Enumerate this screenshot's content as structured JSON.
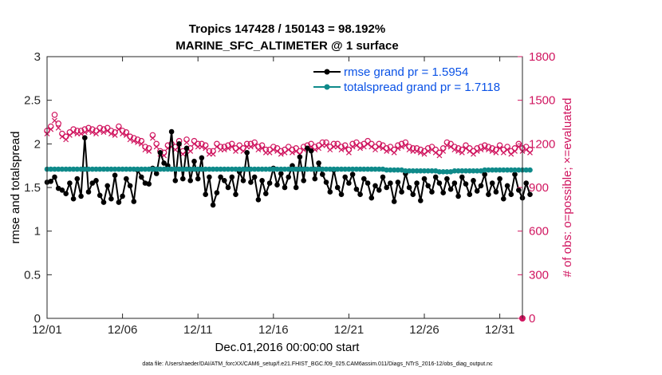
{
  "chart_data": {
    "type": "line",
    "title": "Tropics 147428 / 150143 = 98.192%",
    "subtitle": "MARINE_SFC_ALTIMETER @ 1 surface",
    "xlabel": "Dec.01,2016 00:00:00 start",
    "ylabel": "rmse and totalspread",
    "y2label": "# of obs: o=possible; ×=evaluated",
    "footer": "data file: /Users/raeder/DAI/ATM_forcXX/CAM6_setup/f.e21.FHIST_BGC.f09_025.CAM6assim.011/Diags_NTrS_2016-12/obs_diag_output.nc",
    "xlim": [
      1,
      32.5
    ],
    "ylim": [
      0,
      3
    ],
    "y2lim": [
      0,
      1800
    ],
    "x_ticks": [
      1,
      6,
      11,
      16,
      21,
      26,
      31
    ],
    "x_tick_labels": [
      "12/01",
      "12/06",
      "12/11",
      "12/16",
      "12/21",
      "12/26",
      "12/31"
    ],
    "y_ticks": [
      0,
      0.5,
      1,
      1.5,
      2,
      2.5,
      3
    ],
    "y_tick_labels": [
      "0",
      "0.5",
      "1",
      "1.5",
      "2",
      "2.5",
      "3"
    ],
    "y2_ticks": [
      0,
      300,
      600,
      900,
      1200,
      1500,
      1800
    ],
    "y2_tick_labels": [
      "0",
      "300",
      "600",
      "900",
      "1200",
      "1500",
      "1800"
    ],
    "legend_placement": "top-right",
    "grid": false,
    "x_step_days": 0.25,
    "series": [
      {
        "name": "rmse grand pr = 1.5954",
        "axis": "left",
        "color": "#000000",
        "marker": "filled-circle",
        "values": [
          1.56,
          1.57,
          1.62,
          1.49,
          1.47,
          1.43,
          1.55,
          1.37,
          1.6,
          1.4,
          2.07,
          1.45,
          1.55,
          1.58,
          1.41,
          1.33,
          1.52,
          1.37,
          1.64,
          1.33,
          1.4,
          1.6,
          1.52,
          1.34,
          1.7,
          1.62,
          1.55,
          1.54,
          1.72,
          1.66,
          1.9,
          1.78,
          1.75,
          2.14,
          1.58,
          2.0,
          1.6,
          1.95,
          1.58,
          1.8,
          1.6,
          1.84,
          1.42,
          1.62,
          1.3,
          1.44,
          1.62,
          1.58,
          1.5,
          1.62,
          1.42,
          1.68,
          1.58,
          1.9,
          1.56,
          1.62,
          1.36,
          1.58,
          1.43,
          1.55,
          1.72,
          1.53,
          1.66,
          1.5,
          1.62,
          1.75,
          1.5,
          1.85,
          1.58,
          1.95,
          1.92,
          1.6,
          1.78,
          1.65,
          1.56,
          1.45,
          1.7,
          1.5,
          1.42,
          1.62,
          1.55,
          1.65,
          1.48,
          1.42,
          1.6,
          1.55,
          1.38,
          1.52,
          1.47,
          1.62,
          1.5,
          1.55,
          1.34,
          1.56,
          1.45,
          1.66,
          1.5,
          1.42,
          1.55,
          1.35,
          1.6,
          1.52,
          1.45,
          1.62,
          1.55,
          1.44,
          1.6,
          1.48,
          1.55,
          1.4,
          1.62,
          1.54,
          1.42,
          1.58,
          1.46,
          1.52,
          1.65,
          1.42,
          1.55,
          1.45,
          1.6,
          1.37,
          1.52,
          1.42,
          1.65,
          1.47,
          1.38,
          1.55,
          1.42
        ]
      },
      {
        "name": "totalspread grand pr = 1.7118",
        "axis": "left",
        "color": "#0f8a8a",
        "marker": "filled-circle",
        "values": [
          1.71,
          1.71,
          1.71,
          1.71,
          1.71,
          1.71,
          1.71,
          1.71,
          1.71,
          1.71,
          1.71,
          1.71,
          1.71,
          1.71,
          1.71,
          1.71,
          1.71,
          1.71,
          1.71,
          1.71,
          1.71,
          1.71,
          1.71,
          1.71,
          1.71,
          1.71,
          1.71,
          1.71,
          1.71,
          1.71,
          1.71,
          1.71,
          1.71,
          1.71,
          1.71,
          1.71,
          1.71,
          1.71,
          1.71,
          1.71,
          1.71,
          1.71,
          1.71,
          1.71,
          1.71,
          1.71,
          1.71,
          1.71,
          1.71,
          1.71,
          1.71,
          1.71,
          1.71,
          1.71,
          1.71,
          1.71,
          1.71,
          1.71,
          1.71,
          1.71,
          1.71,
          1.71,
          1.71,
          1.71,
          1.71,
          1.71,
          1.71,
          1.71,
          1.71,
          1.71,
          1.71,
          1.71,
          1.71,
          1.71,
          1.71,
          1.71,
          1.71,
          1.71,
          1.71,
          1.71,
          1.71,
          1.71,
          1.71,
          1.71,
          1.71,
          1.71,
          1.71,
          1.71,
          1.71,
          1.71,
          1.7,
          1.7,
          1.7,
          1.7,
          1.7,
          1.69,
          1.69,
          1.69,
          1.69,
          1.69,
          1.69,
          1.69,
          1.69,
          1.69,
          1.68,
          1.68,
          1.68,
          1.68,
          1.69,
          1.69,
          1.69,
          1.69,
          1.69,
          1.69,
          1.69,
          1.69,
          1.7,
          1.7,
          1.7,
          1.7,
          1.7,
          1.7,
          1.7,
          1.7,
          1.7,
          1.7,
          1.7,
          1.7,
          1.7
        ]
      },
      {
        "name": "possible",
        "axis": "right",
        "color": "#d0155f",
        "marker": "open-circle",
        "values": [
          1290,
          1320,
          1400,
          1340,
          1270,
          1250,
          1280,
          1300,
          1290,
          1290,
          1300,
          1310,
          1300,
          1290,
          1310,
          1300,
          1310,
          1290,
          1280,
          1320,
          1290,
          1280,
          1250,
          1240,
          1230,
          1220,
          1180,
          1170,
          1260,
          1200,
          1150,
          1140,
          1190,
          1200,
          1180,
          1220,
          1150,
          1230,
          1170,
          1220,
          1200,
          1200,
          1190,
          1150,
          1150,
          1200,
          1180,
          1180,
          1190,
          1200,
          1170,
          1190,
          1170,
          1200,
          1200,
          1210,
          1180,
          1190,
          1160,
          1160,
          1180,
          1170,
          1150,
          1160,
          1180,
          1160,
          1170,
          1150,
          1180,
          1190,
          1200,
          1180,
          1190,
          1210,
          1210,
          1180,
          1200,
          1200,
          1180,
          1190,
          1160,
          1200,
          1210,
          1190,
          1200,
          1220,
          1200,
          1180,
          1200,
          1190,
          1170,
          1180,
          1160,
          1190,
          1200,
          1210,
          1180,
          1170,
          1170,
          1160,
          1150,
          1170,
          1180,
          1160,
          1140,
          1170,
          1210,
          1200,
          1180,
          1170,
          1160,
          1190,
          1170,
          1150,
          1170,
          1180,
          1190,
          1180,
          1170,
          1160,
          1190,
          1160,
          1180,
          1150,
          1170,
          1200,
          1170,
          1180,
          1160
        ]
      },
      {
        "name": "evaluated",
        "axis": "right",
        "color": "#d0155f",
        "marker": "cross",
        "values": [
          1270,
          1300,
          1360,
          1310,
          1250,
          1230,
          1260,
          1280,
          1270,
          1270,
          1280,
          1290,
          1280,
          1270,
          1290,
          1280,
          1290,
          1270,
          1260,
          1300,
          1270,
          1260,
          1230,
          1220,
          1210,
          1200,
          1160,
          1150,
          1240,
          1180,
          1130,
          1120,
          1170,
          1180,
          1160,
          1200,
          1130,
          1210,
          1150,
          1200,
          1180,
          1180,
          1170,
          1130,
          1130,
          1180,
          1160,
          1160,
          1170,
          1180,
          1150,
          1170,
          1150,
          1180,
          1180,
          1190,
          1160,
          1170,
          1140,
          1140,
          1160,
          1150,
          1130,
          1140,
          1160,
          1140,
          1150,
          1130,
          1160,
          1170,
          1180,
          1160,
          1170,
          1190,
          1190,
          1160,
          1180,
          1180,
          1160,
          1170,
          1140,
          1180,
          1190,
          1170,
          1180,
          1200,
          1180,
          1160,
          1180,
          1170,
          1150,
          1160,
          1140,
          1170,
          1180,
          1190,
          1160,
          1150,
          1150,
          1140,
          1130,
          1150,
          1160,
          1140,
          1120,
          1150,
          1190,
          1180,
          1160,
          1150,
          1140,
          1170,
          1150,
          1130,
          1150,
          1160,
          1170,
          1160,
          1150,
          1140,
          1170,
          1140,
          1160,
          1130,
          1150,
          1180,
          1150,
          1160,
          1140
        ]
      }
    ]
  },
  "colors": {
    "right_axis": "#d0155f",
    "legend_text": "#0a52e6"
  }
}
